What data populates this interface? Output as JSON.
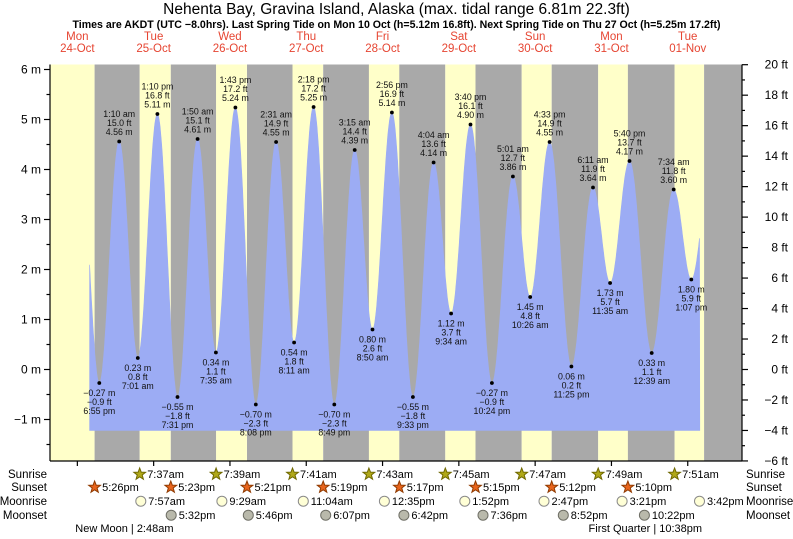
{
  "header": {
    "title": "Nehenta Bay, Gravina Island, Alaska (max. tidal range 6.81m 22.3ft)",
    "subtitle": "Times are AKDT (UTC −8.0hrs). Last Spring Tide on Mon 10 Oct (h=5.12m 16.8ft). Next Spring Tide on Thu 27 Oct (h=5.25m 17.2ft)"
  },
  "chart_data": {
    "type": "area",
    "title": "Nehenta Bay, Gravina Island, Alaska (max. tidal range 6.81m 22.3ft)",
    "days": [
      {
        "name": "Mon",
        "date": "24-Oct"
      },
      {
        "name": "Tue",
        "date": "25-Oct"
      },
      {
        "name": "Wed",
        "date": "26-Oct"
      },
      {
        "name": "Thu",
        "date": "27-Oct"
      },
      {
        "name": "Fri",
        "date": "28-Oct"
      },
      {
        "name": "Sat",
        "date": "29-Oct"
      },
      {
        "name": "Sun",
        "date": "30-Oct"
      },
      {
        "name": "Mon",
        "date": "31-Oct"
      },
      {
        "name": "Tue",
        "date": "01-Nov"
      }
    ],
    "y_axis_left": {
      "unit": "m",
      "min": -1,
      "max": 6,
      "label_step": 1
    },
    "y_axis_right": {
      "unit": "ft",
      "min": -6,
      "max": 20,
      "label_step": 2
    },
    "tide_events": [
      {
        "day": 0,
        "type": "low",
        "time": "6:55 pm",
        "m": "-0.27",
        "ft": "-0.9"
      },
      {
        "day": 1,
        "type": "high",
        "time": "1:10 am",
        "m": "4.56",
        "ft": "15.0"
      },
      {
        "day": 1,
        "type": "low",
        "time": "7:01 am",
        "m": "0.23",
        "ft": "0.8"
      },
      {
        "day": 1,
        "type": "high",
        "time": "1:10 pm",
        "m": "5.11",
        "ft": "16.8"
      },
      {
        "day": 1,
        "type": "low",
        "time": "7:31 pm",
        "m": "-0.55",
        "ft": "-1.8"
      },
      {
        "day": 2,
        "type": "high",
        "time": "1:50 am",
        "m": "4.61",
        "ft": "15.1"
      },
      {
        "day": 2,
        "type": "low",
        "time": "7:35 am",
        "m": "0.34",
        "ft": "1.1"
      },
      {
        "day": 2,
        "type": "high",
        "time": "1:43 pm",
        "m": "5.24",
        "ft": "17.2"
      },
      {
        "day": 2,
        "type": "low",
        "time": "8:08 pm",
        "m": "-0.70",
        "ft": "-2.3"
      },
      {
        "day": 3,
        "type": "high",
        "time": "2:31 am",
        "m": "4.55",
        "ft": "14.9"
      },
      {
        "day": 3,
        "type": "low",
        "time": "8:11 am",
        "m": "0.54",
        "ft": "1.8"
      },
      {
        "day": 3,
        "type": "high",
        "time": "2:18 pm",
        "m": "5.25",
        "ft": "17.2"
      },
      {
        "day": 3,
        "type": "low",
        "time": "8:49 pm",
        "m": "-0.70",
        "ft": "-2.3"
      },
      {
        "day": 4,
        "type": "high",
        "time": "3:15 am",
        "m": "4.39",
        "ft": "14.4"
      },
      {
        "day": 4,
        "type": "low",
        "time": "8:50 am",
        "m": "0.80",
        "ft": "2.6"
      },
      {
        "day": 4,
        "type": "high",
        "time": "2:56 pm",
        "m": "5.14",
        "ft": "16.9"
      },
      {
        "day": 4,
        "type": "low",
        "time": "9:33 pm",
        "m": "-0.55",
        "ft": "-1.8"
      },
      {
        "day": 5,
        "type": "high",
        "time": "4:04 am",
        "m": "4.14",
        "ft": "13.6"
      },
      {
        "day": 5,
        "type": "low",
        "time": "9:34 am",
        "m": "1.12",
        "ft": "3.7"
      },
      {
        "day": 5,
        "type": "high",
        "time": "3:40 pm",
        "m": "4.90",
        "ft": "16.1"
      },
      {
        "day": 5,
        "type": "low",
        "time": "10:24 pm",
        "m": "-0.27",
        "ft": "-0.9"
      },
      {
        "day": 6,
        "type": "high",
        "time": "5:01 am",
        "m": "3.86",
        "ft": "12.7"
      },
      {
        "day": 6,
        "type": "low",
        "time": "10:26 am",
        "m": "1.45",
        "ft": "4.8"
      },
      {
        "day": 6,
        "type": "high",
        "time": "4:33 pm",
        "m": "4.55",
        "ft": "14.9"
      },
      {
        "day": 6,
        "type": "low",
        "time": "11:25 pm",
        "m": "0.06",
        "ft": "0.2"
      },
      {
        "day": 7,
        "type": "high",
        "time": "6:11 am",
        "m": "3.64",
        "ft": "11.9"
      },
      {
        "day": 7,
        "type": "low",
        "time": "11:35 am",
        "m": "1.73",
        "ft": "5.7"
      },
      {
        "day": 7,
        "type": "high",
        "time": "5:40 pm",
        "m": "4.17",
        "ft": "13.7"
      },
      {
        "day": 8,
        "type": "low",
        "time": "12:39 am",
        "m": "0.33",
        "ft": "1.1"
      },
      {
        "day": 8,
        "type": "high",
        "time": "7:34 am",
        "m": "3.60",
        "ft": "11.8"
      },
      {
        "day": 8,
        "type": "low",
        "time": "1:07 pm",
        "m": "1.80",
        "ft": "5.9"
      }
    ],
    "sun_moon": {
      "row_labels": [
        "Sunrise",
        "Sunset",
        "Moonrise",
        "Moonset"
      ],
      "sunrise": [
        {
          "day": 1,
          "time": "7:37am"
        },
        {
          "day": 2,
          "time": "7:39am"
        },
        {
          "day": 3,
          "time": "7:41am"
        },
        {
          "day": 4,
          "time": "7:43am"
        },
        {
          "day": 5,
          "time": "7:45am"
        },
        {
          "day": 6,
          "time": "7:47am"
        },
        {
          "day": 7,
          "time": "7:49am"
        },
        {
          "day": 8,
          "time": "7:51am"
        }
      ],
      "sunset": [
        {
          "day": 0,
          "time": "5:26pm"
        },
        {
          "day": 1,
          "time": "5:23pm"
        },
        {
          "day": 2,
          "time": "5:21pm"
        },
        {
          "day": 3,
          "time": "5:19pm"
        },
        {
          "day": 4,
          "time": "5:17pm"
        },
        {
          "day": 5,
          "time": "5:15pm"
        },
        {
          "day": 6,
          "time": "5:12pm"
        },
        {
          "day": 7,
          "time": "5:10pm"
        }
      ],
      "moonrise": [
        {
          "day": 1,
          "time": "7:57am"
        },
        {
          "day": 2,
          "time": "9:29am"
        },
        {
          "day": 3,
          "time": "11:04am"
        },
        {
          "day": 4,
          "time": "12:35pm"
        },
        {
          "day": 5,
          "time": "1:52pm"
        },
        {
          "day": 6,
          "time": "2:47pm"
        },
        {
          "day": 7,
          "time": "3:21pm"
        },
        {
          "day": 8,
          "time": "3:42pm"
        }
      ],
      "moonset": [
        {
          "day": 1,
          "time": "5:32pm"
        },
        {
          "day": 2,
          "time": "5:46pm"
        },
        {
          "day": 3,
          "time": "6:07pm"
        },
        {
          "day": 4,
          "time": "6:42pm"
        },
        {
          "day": 5,
          "time": "7:36pm"
        },
        {
          "day": 6,
          "time": "8:52pm"
        },
        {
          "day": 7,
          "time": "10:22pm"
        }
      ]
    },
    "moon_phases": [
      {
        "label": "New Moon",
        "time": "2:48am",
        "day": 1
      },
      {
        "label": "First Quarter",
        "time": "10:38pm",
        "day": 7
      }
    ],
    "colors": {
      "daytime": "#ffffc9",
      "night": "#a9a9a9",
      "water": "#9cacf4",
      "day_label_red": "#e64532",
      "sunrise_star": "#b0a818",
      "sunrise_star_edge": "#6f6800",
      "sunset_star": "#e8641c",
      "sunset_star_edge": "#8f3a00",
      "moonrise_circle": "#ffffd6",
      "moonrise_circle_edge": "#8a8a8a",
      "moonset_circle": "#b9b9ab",
      "moonset_circle_edge": "#6f6f66"
    }
  }
}
